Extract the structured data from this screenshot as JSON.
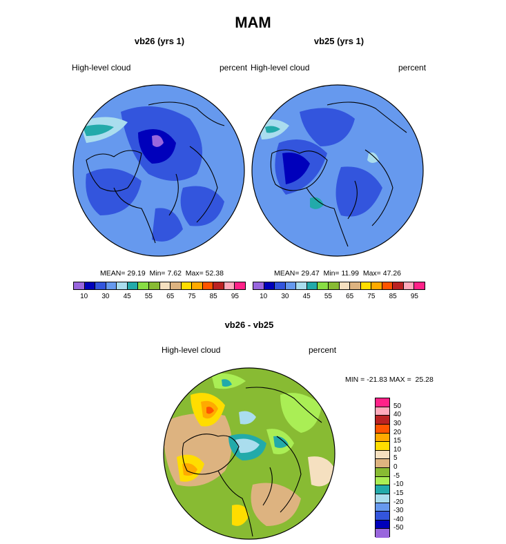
{
  "title": "MAM",
  "panel_left": {
    "subtitle": "vb26 (yrs 1)",
    "left_label": "High-level cloud",
    "right_label": "percent",
    "mean_label": "MEAN=",
    "mean": "29.19",
    "min_label": "Min=",
    "min": "7.62",
    "max_label": "Max=",
    "max": "52.38"
  },
  "panel_right": {
    "subtitle": "vb25 (yrs 1)",
    "left_label": "High-level cloud",
    "right_label": "percent",
    "mean_label": "MEAN=",
    "mean": "29.47",
    "min_label": "Min=",
    "min": "11.99",
    "max_label": "Max=",
    "max": "47.26"
  },
  "colorbar_top": {
    "colors": [
      "#9966dd",
      "#0000bb",
      "#3355dd",
      "#6699ee",
      "#aaddee",
      "#22aaaa",
      "#88dd44",
      "#88bb33",
      "#f5e0c0",
      "#ddb380",
      "#ffdd00",
      "#ffaa00",
      "#ff5500",
      "#bb2222",
      "#ffaabb",
      "#ff2288"
    ],
    "ticks": [
      "10",
      "30",
      "45",
      "55",
      "65",
      "75",
      "85",
      "95"
    ]
  },
  "diff_panel": {
    "subtitle": "vb26 - vb25",
    "left_label": "High-level cloud",
    "right_label": "percent",
    "minmax_text": "MIN = -21.83 MAX =  25.28",
    "colors": [
      "#ff2288",
      "#ffaabb",
      "#bb2222",
      "#ff5500",
      "#ffaa00",
      "#ffdd00",
      "#f5e0c0",
      "#ddb380",
      "#88bb33",
      "#aaee55",
      "#22aaaa",
      "#aaddee",
      "#6699ee",
      "#3355dd",
      "#0000bb",
      "#9966dd"
    ],
    "ticks": [
      "50",
      "40",
      "30",
      "20",
      "15",
      "10",
      "5",
      "0",
      "-5",
      "-10",
      "-15",
      "-20",
      "-30",
      "-40",
      "-50"
    ]
  }
}
